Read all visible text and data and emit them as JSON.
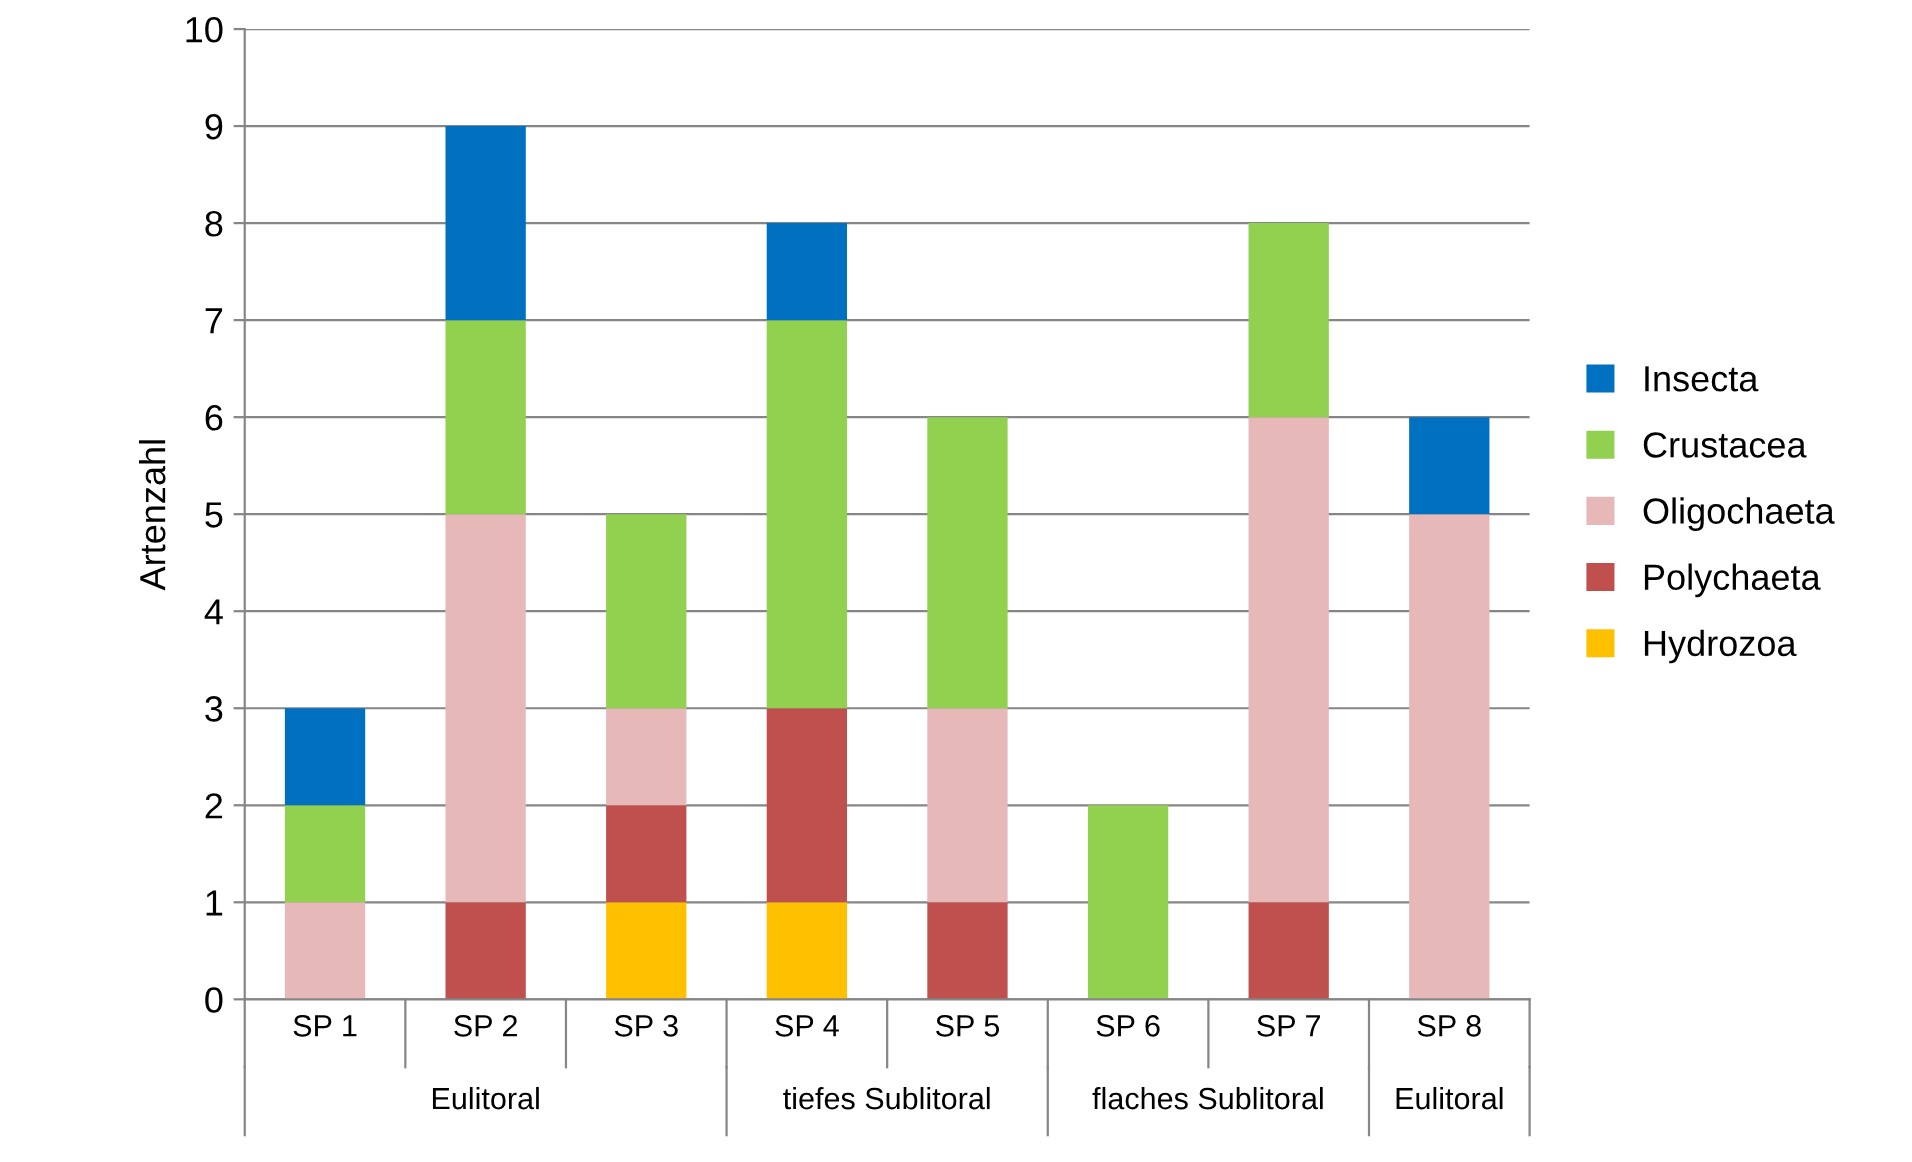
{
  "chart_data": {
    "type": "bar",
    "stacked": true,
    "ylabel": "Artenzahl",
    "categories": [
      "SP 1",
      "SP 2",
      "SP 3",
      "SP 4",
      "SP 5",
      "SP 6",
      "SP 7",
      "SP 8"
    ],
    "series": [
      {
        "name": "Hydrozoa",
        "color": "#ffc000",
        "values": [
          0,
          0,
          1,
          1,
          0,
          0,
          0,
          0
        ]
      },
      {
        "name": "Polychaeta",
        "color": "#c0504d",
        "values": [
          0,
          1,
          1,
          2,
          1,
          0,
          1,
          0
        ]
      },
      {
        "name": "Oligochaeta",
        "color": "#e6b9b8",
        "values": [
          1,
          4,
          1,
          0,
          2,
          0,
          5,
          5
        ]
      },
      {
        "name": "Crustacea",
        "color": "#92d050",
        "values": [
          1,
          2,
          2,
          4,
          3,
          2,
          2,
          0
        ]
      },
      {
        "name": "Insecta",
        "color": "#0070c0",
        "values": [
          1,
          2,
          0,
          1,
          0,
          0,
          0,
          1
        ]
      }
    ],
    "annotations": [
      "Eulitoral",
      "tiefes Sublitoral",
      "flaches Sublitoral",
      "Eulitoral"
    ],
    "ylim": [
      0,
      10
    ],
    "yticks": [
      0,
      1,
      2,
      3,
      4,
      5,
      6,
      7,
      8,
      9,
      10
    ],
    "grid": "y",
    "legend": "right"
  }
}
